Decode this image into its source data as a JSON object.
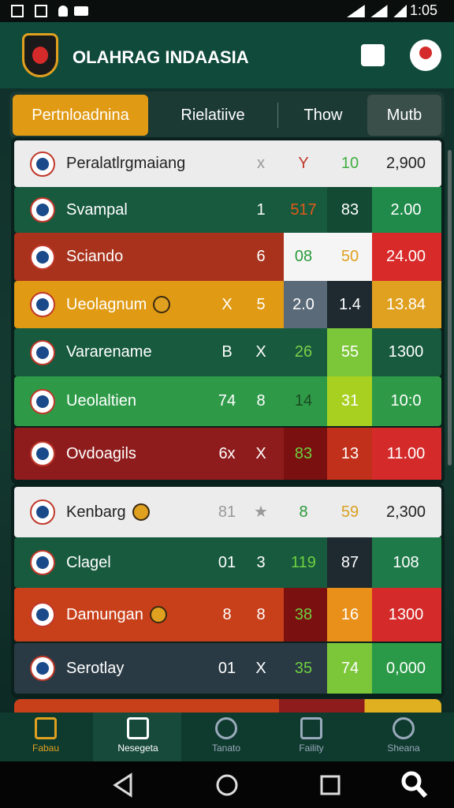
{
  "status_bar": {
    "time": "1:05"
  },
  "header": {
    "title": "OLAHRAG INDAASIA"
  },
  "tabs": [
    "Pertnloadnina",
    "Rielatiive",
    "Thow",
    "Mutb"
  ],
  "table": {
    "rows": [
      [
        "Peralatlrgmaiang",
        null,
        "x",
        "Y",
        "10",
        "2,900"
      ],
      [
        "Svampal",
        null,
        "1",
        "517",
        "83",
        "2.00"
      ],
      [
        "Sciando",
        null,
        "6",
        "08",
        "50",
        "24.00"
      ],
      [
        "Ueolagnum",
        "X",
        "5",
        "2.0",
        "1.4",
        "13.84"
      ],
      [
        "Vararename",
        "B",
        "X",
        "26",
        "55",
        "1300"
      ],
      [
        "Ueolaltien",
        "74",
        "8",
        "14",
        "31",
        "10:0"
      ],
      [
        "Ovdoagils",
        "6x",
        "X",
        "83",
        "13",
        "11.00"
      ],
      [
        "Kenbarg",
        "81",
        "★",
        "8",
        "59",
        "2,300"
      ],
      [
        "Clagel",
        "01",
        "3",
        "119",
        "87",
        "108"
      ],
      [
        "Damungan",
        "8",
        "8",
        "38",
        "16",
        "1300"
      ],
      [
        "Serotlay",
        "01",
        "X",
        "35",
        "74",
        "0,000"
      ]
    ]
  },
  "bottom_nav": [
    "Fabau",
    "Nesegeta",
    "Tanato",
    "Faility",
    "Sheana"
  ]
}
